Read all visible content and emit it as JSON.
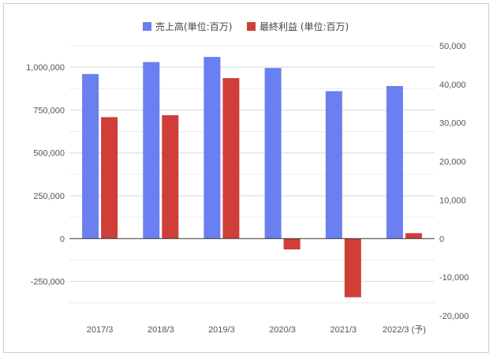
{
  "chart_data": {
    "type": "bar",
    "title": "",
    "categories": [
      "2017/3",
      "2018/3",
      "2019/3",
      "2020/3",
      "2021/3",
      "2022/3 (予)"
    ],
    "series": [
      {
        "name": "売上高(単位:百万)",
        "axis": "left",
        "color": "#6a7ff0",
        "values": [
          960000,
          1030000,
          1060000,
          995000,
          860000,
          890000
        ]
      },
      {
        "name": "最終利益 (単位:百万)",
        "axis": "right",
        "color": "#cf3e37",
        "values": [
          31500,
          32000,
          41600,
          -2800,
          -15200,
          1400
        ]
      }
    ],
    "y_left": {
      "ylim": [
        -450000,
        1125000
      ],
      "ticks": [
        -250000,
        0,
        250000,
        500000,
        750000,
        1000000
      ],
      "tick_labels": [
        "-250,000",
        "0",
        "250,000",
        "500,000",
        "750,000",
        "1,000,000"
      ]
    },
    "y_right": {
      "ylim": [
        -20000,
        50000
      ],
      "ticks": [
        -20000,
        -10000,
        0,
        10000,
        20000,
        30000,
        40000,
        50000
      ],
      "tick_labels": [
        "-20,000",
        "-10,000",
        "0",
        "10,000",
        "20,000",
        "30,000",
        "40,000",
        "50,000"
      ]
    },
    "grid": true,
    "legend_position": "top-center"
  }
}
